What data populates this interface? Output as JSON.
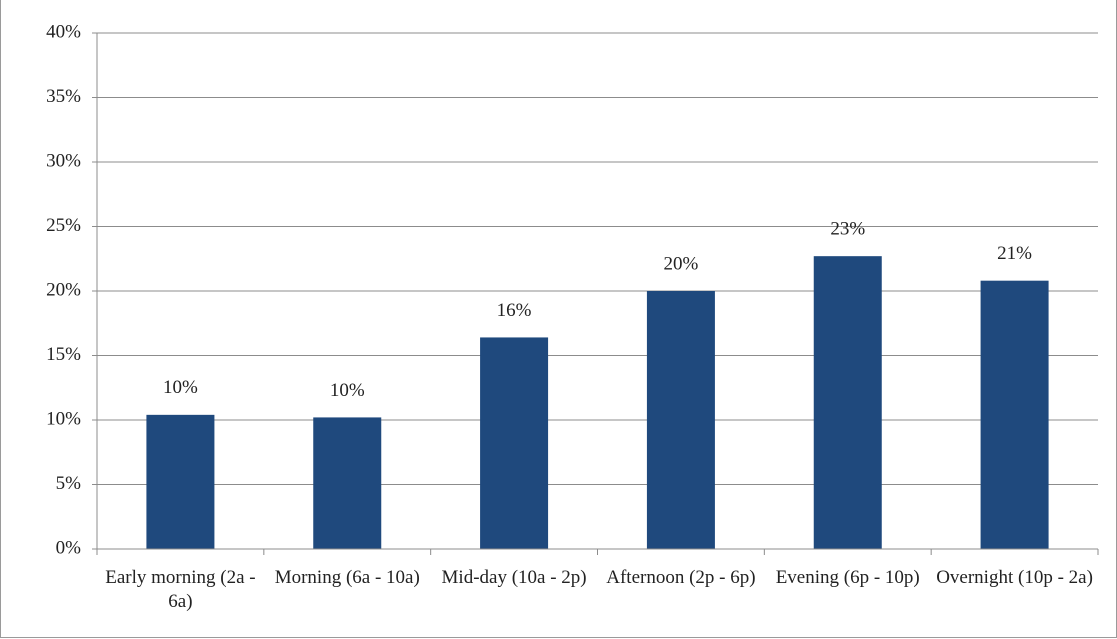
{
  "chart_data": {
    "type": "bar",
    "categories": [
      "Early morning (2a - 6a)",
      "Morning (6a - 10a)",
      "Mid-day (10a - 2p)",
      "Afternoon (2p - 6p)",
      "Evening (6p - 10p)",
      "Overnight (10p - 2a)"
    ],
    "values": [
      10.4,
      10.2,
      16.4,
      20.0,
      22.7,
      20.8
    ],
    "value_labels": [
      "10%",
      "10%",
      "16%",
      "20%",
      "23%",
      "21%"
    ],
    "color": "#1f497d",
    "ylim": [
      0,
      40
    ],
    "yticks": [
      {
        "value": 0,
        "label": "0%"
      },
      {
        "value": 5,
        "label": "5%"
      },
      {
        "value": 10,
        "label": "10%"
      },
      {
        "value": 15,
        "label": "15%"
      },
      {
        "value": 20,
        "label": "20%"
      },
      {
        "value": 25,
        "label": "25%"
      },
      {
        "value": 30,
        "label": "30%"
      },
      {
        "value": 35,
        "label": "35%"
      },
      {
        "value": 40,
        "label": "40%"
      }
    ],
    "grid": true
  }
}
